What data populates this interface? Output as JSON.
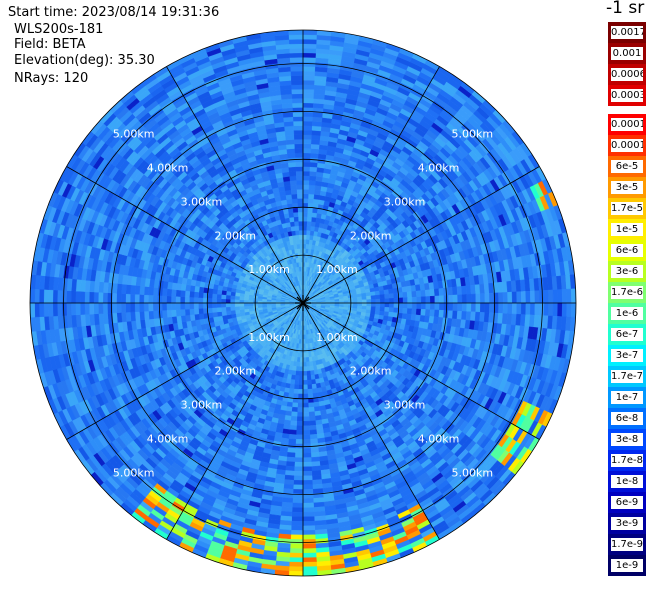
{
  "header": {
    "start_time": "Start time: 2023/08/14 19:31:36",
    "instrument": "WLS200s-181",
    "field": "Field: BETA",
    "elevation": "Elevation(deg): 35.30",
    "nrays": "NRays: 120"
  },
  "colorbar": {
    "unit": "-1 sr",
    "labels": [
      "0.0017",
      "0.001",
      "0.0006",
      "0.0003",
      "0.00017",
      "0.0001",
      "6e-5",
      "3e-5",
      "1.7e-5",
      "1e-5",
      "6e-6",
      "3e-6",
      "1.7e-6",
      "1e-6",
      "6e-7",
      "3e-7",
      "1.7e-7",
      "1e-7",
      "6e-8",
      "3e-8",
      "1.7e-8",
      "1e-8",
      "6e-9",
      "3e-9",
      "1.7e-9",
      "1e-9"
    ],
    "colors": [
      "#7a0000",
      "#9a0000",
      "#c00000",
      "#e00000",
      "#ff0000",
      "#ff3000",
      "#ff6a00",
      "#ff9a00",
      "#ffc800",
      "#ffee00",
      "#e6ff00",
      "#b8ff20",
      "#80ff70",
      "#50ffa0",
      "#20ffd0",
      "#00f0ff",
      "#00c8ff",
      "#0098ff",
      "#0070ff",
      "#0048ff",
      "#0028f0",
      "#0010d8",
      "#0000c0",
      "#0000a0",
      "#000080",
      "#000066"
    ],
    "gap_after_index": 3
  },
  "chart_data": {
    "type": "heatmap",
    "projection": "polar (PPI)",
    "field": "BETA",
    "n_rays": 120,
    "elevation_deg": 35.3,
    "range_ring_labels": [
      "1.00km",
      "2.00km",
      "3.00km",
      "4.00km",
      "5.00km"
    ],
    "range_rings_km": [
      1,
      2,
      3,
      4,
      5
    ],
    "max_range_km": 5.7,
    "azimuth_spokes_deg": [
      0,
      30,
      60,
      90,
      120,
      150,
      180,
      210,
      240,
      270,
      300,
      330
    ],
    "background_value": "1e-8 to 3e-8",
    "near_range_value": "6e-8 to 1.7e-7",
    "high_value_sectors": [
      {
        "azimuth_deg_range": [
          150,
          220
        ],
        "range_km": [
          4.8,
          5.7
        ],
        "value_range": "1.7e-6 to 3e-5"
      },
      {
        "azimuth_deg_range": [
          115,
          130
        ],
        "range_km": [
          5.0,
          5.7
        ],
        "value_range": "1e-6 to 3e-5"
      },
      {
        "azimuth_deg_range": [
          62,
          68
        ],
        "range_km": [
          5.3,
          5.7
        ],
        "value_range": "1e-6 to 1.7e-5"
      }
    ]
  }
}
